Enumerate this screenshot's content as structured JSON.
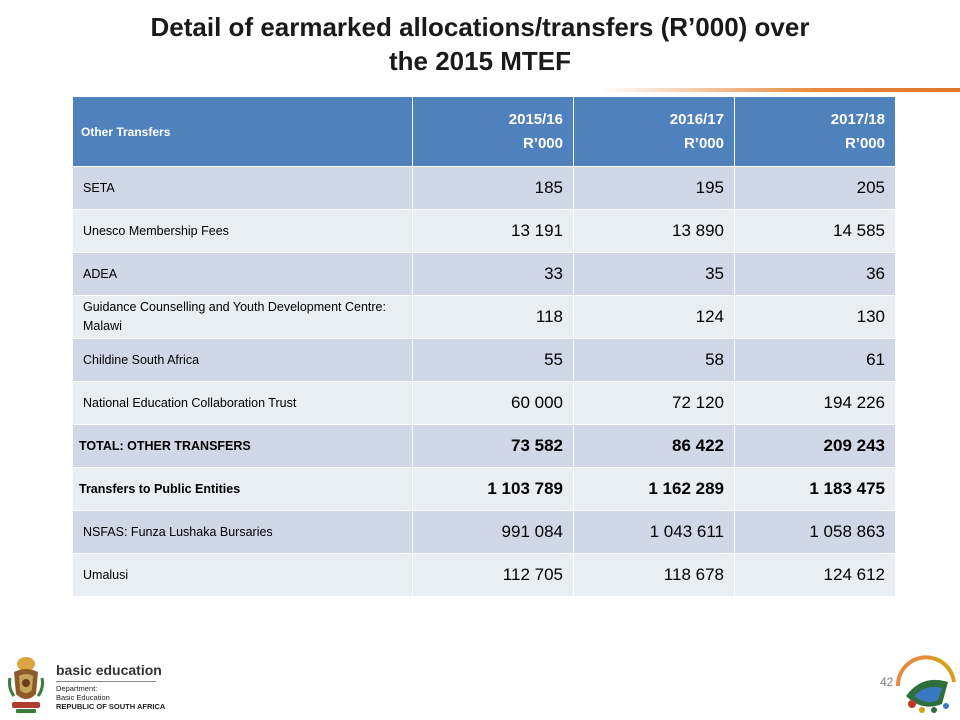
{
  "title": {
    "line1": "Detail of earmarked allocations/transfers (R’000) over",
    "line2": "the 2015 MTEF"
  },
  "table": {
    "header": {
      "label": "Other  Transfers",
      "years": [
        {
          "year": "2015/16",
          "unit": "R’000"
        },
        {
          "year": "2016/17",
          "unit": "R’000"
        },
        {
          "year": "2017/18",
          "unit": "R’000"
        }
      ]
    },
    "rows": [
      {
        "label": "SETA",
        "values": [
          "185",
          "195",
          "205"
        ]
      },
      {
        "label": "Unesco Membership Fees",
        "values": [
          "13 191",
          "13 890",
          "14 585"
        ]
      },
      {
        "label": "ADEA",
        "values": [
          "33",
          "35",
          "36"
        ]
      },
      {
        "label": "Guidance Counselling and Youth Development Centre: Malawi",
        "values": [
          "118",
          "124",
          "130"
        ]
      },
      {
        "label": "Childine South Africa",
        "values": [
          "55",
          "58",
          "61"
        ]
      },
      {
        "label": "National Education Collaboration Trust",
        "values": [
          "60 000",
          "72 120",
          "194 226"
        ]
      },
      {
        "label": "TOTAL: OTHER TRANSFERS",
        "values": [
          "73 582",
          "86 422",
          "209 243"
        ]
      },
      {
        "label": "Transfers to Public Entities",
        "values": [
          "1 103 789",
          "1 162 289",
          "1 183 475"
        ]
      },
      {
        "label": "NSFAS: Funza Lushaka Bursaries",
        "values": [
          "991 084",
          "1 043 611",
          "1 058 863"
        ]
      },
      {
        "label": "Umalusi",
        "values": [
          "112 705",
          "118 678",
          "124 612"
        ]
      }
    ]
  },
  "footer": {
    "page_number": "42",
    "logo_main": "basic education",
    "logo_line1": "Department:",
    "logo_line2": "Basic Education",
    "logo_line3": "REPUBLIC OF SOUTH AFRICA"
  },
  "colors": {
    "header_blue": "#4f81bd",
    "row_dark": "#d0d8e8",
    "row_light": "#e9edf4",
    "accent_orange": "#e88a3c"
  }
}
